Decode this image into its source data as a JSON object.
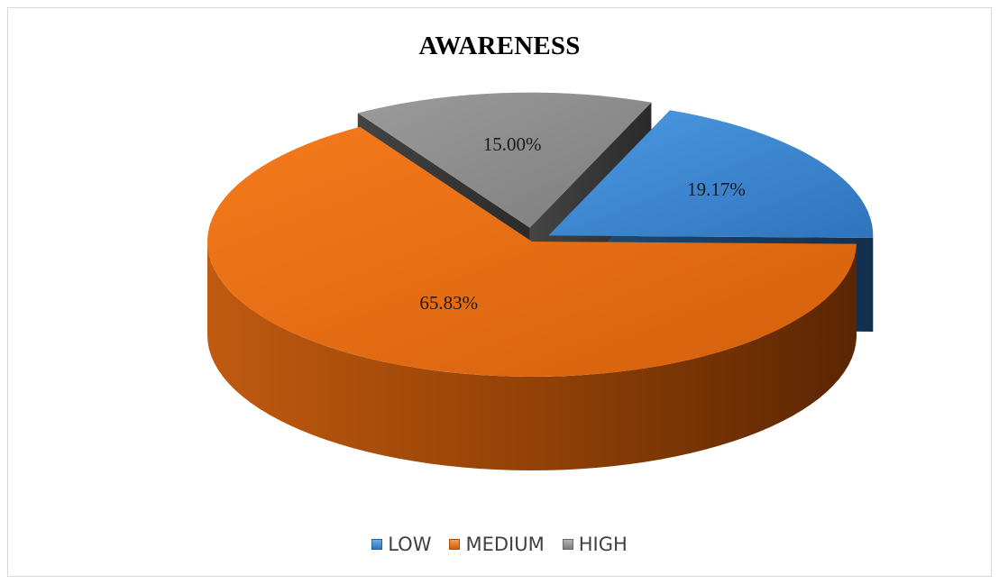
{
  "chart_data": {
    "type": "pie",
    "title": "AWARENESS",
    "categories": [
      "LOW",
      "MEDIUM",
      "HIGH"
    ],
    "values": [
      19.17,
      65.83,
      15.0
    ],
    "data_labels": [
      "19.17%",
      "65.83%",
      "15.00%"
    ],
    "colors": [
      "#3d8ad6",
      "#e8690f",
      "#8a8a8a"
    ],
    "style": "3d-exploded",
    "legend_position": "bottom"
  }
}
